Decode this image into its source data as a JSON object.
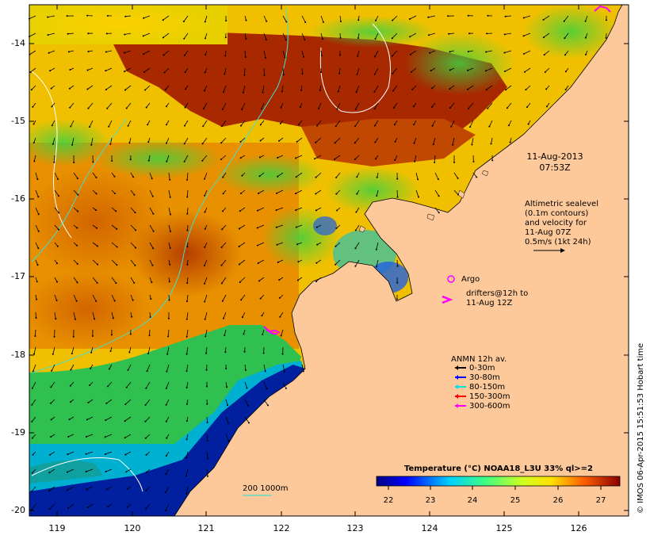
{
  "map": {
    "date": "11-Aug-2013",
    "time": "07:53Z",
    "lat_labels": [
      "-14",
      "-15",
      "-16",
      "-17",
      "-18",
      "-19",
      "-20"
    ],
    "lon_labels": [
      "119",
      "120",
      "121",
      "122",
      "123",
      "124",
      "125",
      "126"
    ],
    "altimetry_note": {
      "line1": "Altimetric sealevel",
      "line2": "(0.1m contours)",
      "line3": "and velocity for",
      "line4": "11-Aug 07Z",
      "line5": "0.5m/s (1kt 24h)"
    },
    "argo_label": "Argo",
    "drifters": {
      "line1": "drifters@12h to",
      "line2": "11-Aug 12Z"
    },
    "anmn": {
      "title": "ANMN 12h av.",
      "items": [
        {
          "label": "0-30m",
          "color": "#000000"
        },
        {
          "label": "30-80m",
          "color": "#0000ff"
        },
        {
          "label": "80-150m",
          "color": "#00e0e0"
        },
        {
          "label": "150-300m",
          "color": "#ff0000"
        },
        {
          "label": "300-600m",
          "color": "#ff00ff"
        }
      ]
    },
    "isobath_label": "200  1000m",
    "colorbar": {
      "title": "Temperature (°C) NOAA18_L3U 33% ql>=2",
      "ticks": [
        "22",
        "23",
        "24",
        "25",
        "26",
        "27"
      ]
    },
    "credit": "© IMOS 06-Apr-2015 15:51:53 Hobart time",
    "colors": {
      "land": "#fec99a",
      "argo": "#ff00ff",
      "contour": "#ffffff",
      "isobath": "#40e0d0"
    }
  }
}
